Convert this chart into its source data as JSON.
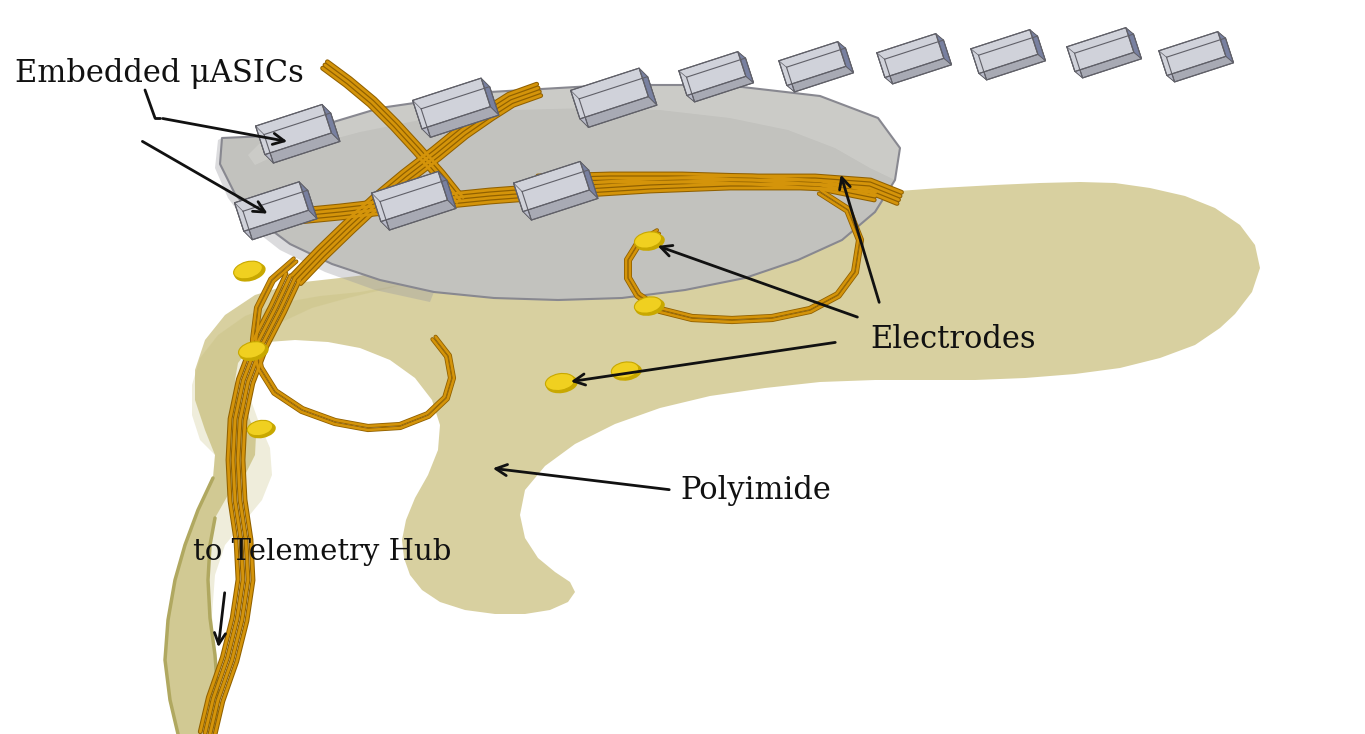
{
  "bg_color": "#ffffff",
  "polyimide_color": "#d8d0a0",
  "polyimide_edge": "#b0a860",
  "polyimide_dark": "#c0b870",
  "polyimide_shadow": "#a8a058",
  "substrate_color": "#c2c2be",
  "substrate_light": "#d8d8d4",
  "substrate_dark": "#9898a0",
  "substrate_edge": "#888890",
  "wire_color": "#d4940a",
  "wire_dark": "#906000",
  "wire_light": "#f0c040",
  "contact_color": "#f0d020",
  "contact_dark": "#c8a800",
  "chip_face": "#a8aab4",
  "chip_top": "#d0d2da",
  "chip_right": "#7880a0",
  "chip_left": "#b8bac8",
  "chip_edge": "#606068",
  "label_color": "#111111",
  "arrow_color": "#111111",
  "labels": {
    "asics": "Embedded μASICs",
    "electrodes": "Electrodes",
    "polyimide": "Polyimide",
    "telemetry": "to Telemetry Hub"
  },
  "label_fontsize": 22
}
